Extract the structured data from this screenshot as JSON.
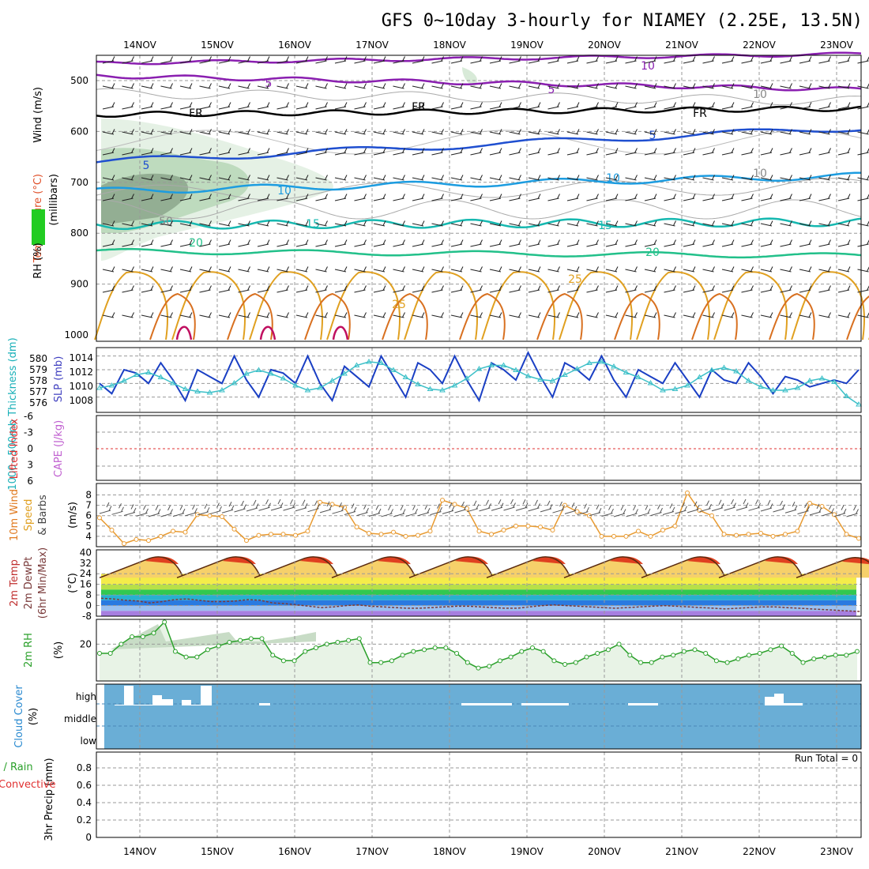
{
  "title": "GFS 0~10day 3-hourly for NIAMEY (2.25E, 13.5N)",
  "date_labels": [
    "14NOV",
    "15NOV",
    "16NOV",
    "17NOV",
    "18NOV",
    "19NOV",
    "20NOV",
    "21NOV",
    "22NOV",
    "23NOV"
  ],
  "colors": {
    "purple": "#8a1fb0",
    "black": "#000000",
    "blue": "#1f4fd0",
    "lightblue": "#1c9ce0",
    "cyan": "#16b8b0",
    "green": "#22c08a",
    "orange": "#e0a020",
    "darkorange": "#d87020",
    "magenta": "#c01060",
    "slp": "#1a3fc4",
    "thick": "#3cc0c8",
    "wind": "#e89a30",
    "rh": "#2aa02a",
    "cloud": "#6aaed6",
    "lifted": "#e03030"
  },
  "panels": {
    "upper": {
      "axis_labels": [
        "Wind (m/s)",
        "Temperature (°C)",
        "RH (%)",
        "(millibars)"
      ],
      "pressure_ticks": [
        "500",
        "600",
        "700",
        "800",
        "900",
        "1000"
      ],
      "contour_labels": [
        "10",
        "5",
        "5",
        "FR",
        "FR",
        "FR",
        "5",
        "5",
        "10",
        "10",
        "15",
        "15",
        "20",
        "20",
        "25",
        "25",
        "50",
        "10",
        "10"
      ]
    },
    "slp": {
      "label_left": "1000~500mb Thickness (dm)",
      "label_right": "SLP (mb)",
      "thickness_ticks": [
        "580",
        "579",
        "578",
        "577",
        "576"
      ],
      "slp_ticks": [
        "1014",
        "1012",
        "1010",
        "1008"
      ]
    },
    "li": {
      "label_left": "Lifted Index",
      "label_right": "CAPE (J/kg)",
      "ticks": [
        "-6",
        "-3",
        "0",
        "3",
        "6"
      ]
    },
    "wind10": {
      "label": "10m Wind Speed & Barbs",
      "unit": "(m/s)",
      "ticks": [
        "8",
        "7",
        "6",
        "5",
        "4"
      ]
    },
    "temp": {
      "label": "2m Temp 2m DewPt (6hr Min/Max)",
      "unit": "(°C)",
      "ticks": [
        "40",
        "32",
        "24",
        "16",
        "8",
        "0",
        "-8"
      ]
    },
    "rh": {
      "label": "2m RH",
      "unit": "(%)",
      "ticks": [
        "20"
      ]
    },
    "cloud": {
      "label": "Cloud Cover",
      "unit": "(%)",
      "levels": [
        "high",
        "middle",
        "low"
      ]
    },
    "precip": {
      "label": "3hr Precip (mm)",
      "legend_left": "Total / Rain",
      "legend_convective": "Convective",
      "ticks": [
        "0.8",
        "0.6",
        "0.4",
        "0.2",
        "0"
      ],
      "run_total": "Run Total = 0"
    }
  },
  "chart_data": [
    {
      "type": "line",
      "title": "1000~500mb Thickness / SLP",
      "series": [
        {
          "name": "SLP (mb)",
          "values": [
            1010,
            1008.5,
            1012,
            1011.5,
            1010,
            1013,
            1010.5,
            1007.5,
            1012,
            1011,
            1010,
            1014,
            1010.5,
            1008,
            1012,
            1011.5,
            1010,
            1014,
            1010,
            1007.5,
            1012.5,
            1011,
            1009.5,
            1014,
            1011,
            1008,
            1013,
            1012,
            1010,
            1014,
            1010.5,
            1007.5,
            1013,
            1012,
            1010.5,
            1014.5,
            1011,
            1008,
            1013,
            1012,
            1010.5,
            1014,
            1010.5,
            1008,
            1012,
            1011,
            1010,
            1013,
            1010.5,
            1008,
            1012,
            1010.5,
            1010,
            1013,
            1011,
            1008.5,
            1011,
            1010.5,
            1009.5,
            1010,
            1010.5,
            1010,
            1012
          ]
        },
        {
          "name": "1000~500mb Thickness (dm)",
          "values": [
            577.7,
            577.9,
            578.3,
            578.8,
            579.0,
            578.6,
            578.1,
            577.6,
            577.4,
            577.3,
            577.5,
            578.1,
            578.9,
            579.2,
            578.9,
            578.5,
            577.9,
            577.5,
            577.7,
            578.3,
            578.9,
            579.6,
            579.9,
            579.8,
            579.2,
            578.6,
            578.0,
            577.6,
            577.5,
            577.9,
            578.5,
            579.3,
            579.6,
            579.6,
            579.2,
            578.7,
            578.4,
            578.3,
            578.8,
            579.3,
            579.8,
            579.9,
            579.5,
            579.0,
            578.6,
            578.1,
            577.5,
            577.6,
            577.9,
            578.6,
            579.2,
            579.4,
            579.1,
            578.3,
            577.8,
            577.5,
            577.5,
            577.7,
            578.3,
            578.5,
            578.2,
            577.0,
            576.3
          ]
        }
      ]
    },
    {
      "type": "line",
      "title": "10m Wind Speed",
      "series": [
        {
          "name": "10m Wind Speed",
          "values": [
            5.8,
            4.6,
            3.3,
            3.7,
            3.6,
            4.0,
            4.5,
            4.4,
            6.1,
            6.0,
            5.9,
            4.7,
            3.6,
            4.1,
            4.2,
            4.2,
            4.1,
            4.5,
            7.3,
            7.1,
            6.8,
            4.9,
            4.3,
            4.2,
            4.4,
            4.0,
            4.1,
            4.5,
            7.5,
            7.1,
            6.7,
            4.5,
            4.2,
            4.6,
            5.0,
            5.0,
            4.9,
            4.6,
            7.0,
            6.4,
            6.0,
            4.0,
            4.0,
            4.0,
            4.5,
            4.0,
            4.6,
            5.0,
            8.2,
            6.5,
            6.0,
            4.2,
            4.1,
            4.2,
            4.3,
            4.0,
            4.2,
            4.5,
            7.2,
            6.9,
            6.1,
            4.2,
            3.8
          ]
        }
      ]
    },
    {
      "type": "area",
      "title": "2m Temp / 2m DewPt",
      "series": [
        {
          "name": "2m Temp",
          "min_max": [
            [
              21,
              36
            ],
            [
              21,
              36
            ],
            [
              21,
              36
            ],
            [
              21,
              36
            ],
            [
              21,
              36
            ],
            [
              21,
              36
            ],
            [
              21,
              36
            ],
            [
              21,
              36
            ],
            [
              21,
              36
            ],
            [
              21,
              35.5
            ]
          ]
        },
        {
          "name": "2m DewPt",
          "values": [
            5.5,
            5,
            4,
            3.5,
            2,
            3,
            4.5,
            5,
            4,
            3,
            3,
            3.5,
            4.5,
            4,
            2,
            1.5,
            0.5,
            -0.5,
            -1.5,
            -1,
            0,
            0.5,
            -0.5,
            -1,
            -1.5,
            -2,
            -2,
            -1.5,
            -1,
            -0.5,
            -0.5,
            -1,
            -1.5,
            -2,
            -2,
            -1,
            0,
            0.5,
            0,
            -0.5,
            -1,
            -1.5,
            -2,
            -1.5,
            -1,
            -0.5,
            0,
            -0.5,
            -1,
            -1.5,
            -2,
            -2.5,
            -2,
            -1.5,
            -1,
            -1,
            -1.5,
            -2,
            -2.5,
            -3,
            -3.5,
            -4,
            -4.5
          ]
        }
      ]
    },
    {
      "type": "area",
      "title": "2m RH",
      "series": [
        {
          "name": "2m RH (%)",
          "values": [
            15,
            15,
            20,
            24,
            24,
            26,
            32,
            16,
            13,
            13,
            17,
            19,
            21,
            22,
            23,
            23,
            14,
            11,
            11,
            16,
            18,
            20,
            21,
            22,
            23,
            10,
            10,
            11,
            14,
            16,
            17,
            18,
            18,
            15,
            10,
            7,
            8,
            11,
            13,
            16,
            18,
            16,
            11,
            9,
            10,
            13,
            15,
            17,
            20,
            14,
            10,
            10,
            13,
            14,
            16,
            17,
            15,
            11,
            10,
            12,
            14,
            15,
            17,
            19,
            15,
            10,
            12,
            13,
            14,
            14,
            16
          ]
        }
      ]
    }
  ]
}
